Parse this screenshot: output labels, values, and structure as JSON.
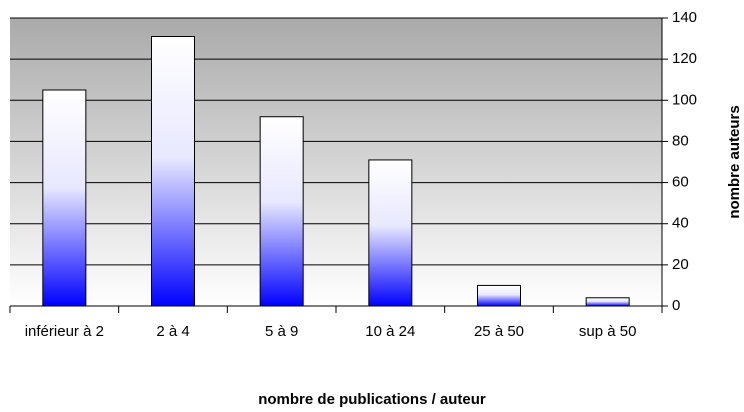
{
  "chart_data": {
    "type": "bar",
    "categories": [
      "inférieur à 2",
      "2 à 4",
      "5 à 9",
      "10 à 24",
      "25 à 50",
      "sup à 50"
    ],
    "values": [
      105,
      131,
      92,
      71,
      10,
      4
    ],
    "color": "#0000ff",
    "x_label": "nombre de publications / auteur",
    "y_label": "nombre auteurs",
    "ylim": [
      0,
      140
    ],
    "yticks": [
      0,
      20,
      40,
      60,
      80,
      100,
      120,
      140
    ],
    "grid": true
  }
}
